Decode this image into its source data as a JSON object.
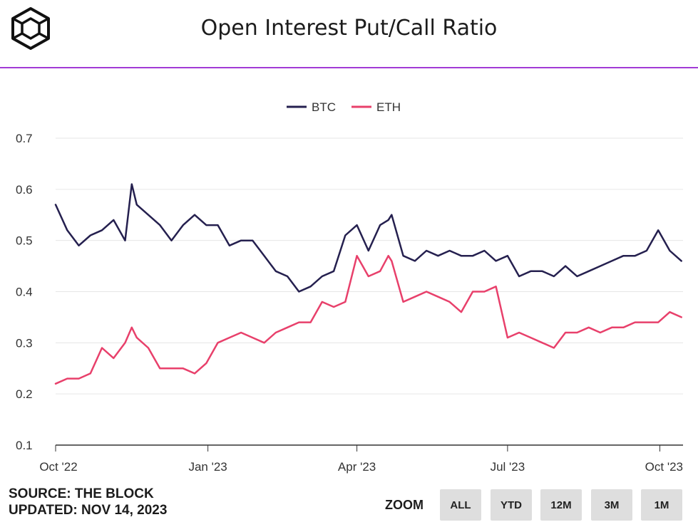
{
  "colors": {
    "accent": "#a23bd6",
    "btc": "#25204f",
    "eth": "#e8406b"
  },
  "header": {
    "logo_icon": "the-block-cube-icon",
    "title": "Open Interest Put/Call Ratio"
  },
  "footer": {
    "source": "SOURCE: THE BLOCK",
    "updated": "UPDATED: NOV 14, 2023",
    "zoom_label": "ZOOM",
    "zoom_buttons": [
      "ALL",
      "YTD",
      "12M",
      "3M",
      "1M"
    ]
  },
  "chart_data": {
    "type": "line",
    "title": "Open Interest Put/Call Ratio",
    "xlabel": "",
    "ylabel": "",
    "ylim": [
      0.1,
      0.7
    ],
    "yticks": [
      "0.1",
      "0.2",
      "0.3",
      "0.4",
      "0.5",
      "0.6",
      "0.7"
    ],
    "xlim": [
      "2022-10-01",
      "2023-10-15"
    ],
    "xticks": [
      {
        "label": "Oct '22",
        "date": "2022-10-01"
      },
      {
        "label": "Jan '23",
        "date": "2023-01-01"
      },
      {
        "label": "Apr '23",
        "date": "2023-04-01"
      },
      {
        "label": "Jul '23",
        "date": "2023-07-01"
      },
      {
        "label": "Oct '23",
        "date": "2023-10-01"
      }
    ],
    "grid": true,
    "legend": "top-center",
    "series": [
      {
        "name": "BTC",
        "x": [
          "2022-10-01",
          "2022-10-08",
          "2022-10-15",
          "2022-10-22",
          "2022-10-29",
          "2022-11-05",
          "2022-11-12",
          "2022-11-16",
          "2022-11-19",
          "2022-11-26",
          "2022-12-03",
          "2022-12-10",
          "2022-12-17",
          "2022-12-24",
          "2022-12-31",
          "2023-01-07",
          "2023-01-14",
          "2023-01-21",
          "2023-01-28",
          "2023-02-04",
          "2023-02-11",
          "2023-02-18",
          "2023-02-25",
          "2023-03-04",
          "2023-03-11",
          "2023-03-18",
          "2023-03-25",
          "2023-04-01",
          "2023-04-08",
          "2023-04-15",
          "2023-04-20",
          "2023-04-22",
          "2023-04-29",
          "2023-05-06",
          "2023-05-13",
          "2023-05-20",
          "2023-05-27",
          "2023-06-03",
          "2023-06-10",
          "2023-06-17",
          "2023-06-24",
          "2023-07-01",
          "2023-07-08",
          "2023-07-15",
          "2023-07-22",
          "2023-07-29",
          "2023-08-05",
          "2023-08-12",
          "2023-08-19",
          "2023-08-26",
          "2023-09-02",
          "2023-09-09",
          "2023-09-16",
          "2023-09-23",
          "2023-09-30",
          "2023-10-07",
          "2023-10-14"
        ],
        "values": [
          0.57,
          0.52,
          0.49,
          0.51,
          0.52,
          0.54,
          0.5,
          0.61,
          0.57,
          0.55,
          0.53,
          0.5,
          0.53,
          0.55,
          0.53,
          0.53,
          0.49,
          0.5,
          0.5,
          0.47,
          0.44,
          0.43,
          0.4,
          0.41,
          0.43,
          0.44,
          0.51,
          0.53,
          0.48,
          0.53,
          0.54,
          0.55,
          0.47,
          0.46,
          0.48,
          0.47,
          0.48,
          0.47,
          0.47,
          0.48,
          0.46,
          0.47,
          0.43,
          0.44,
          0.44,
          0.43,
          0.45,
          0.43,
          0.44,
          0.45,
          0.46,
          0.47,
          0.47,
          0.48,
          0.52,
          0.48,
          0.46
        ]
      },
      {
        "name": "ETH",
        "x": [
          "2022-10-01",
          "2022-10-08",
          "2022-10-15",
          "2022-10-22",
          "2022-10-29",
          "2022-11-05",
          "2022-11-12",
          "2022-11-16",
          "2022-11-19",
          "2022-11-26",
          "2022-12-03",
          "2022-12-10",
          "2022-12-17",
          "2022-12-24",
          "2022-12-31",
          "2023-01-07",
          "2023-01-14",
          "2023-01-21",
          "2023-01-28",
          "2023-02-04",
          "2023-02-11",
          "2023-02-18",
          "2023-02-25",
          "2023-03-04",
          "2023-03-11",
          "2023-03-18",
          "2023-03-25",
          "2023-04-01",
          "2023-04-08",
          "2023-04-15",
          "2023-04-20",
          "2023-04-22",
          "2023-04-29",
          "2023-05-06",
          "2023-05-13",
          "2023-05-20",
          "2023-05-27",
          "2023-06-03",
          "2023-06-10",
          "2023-06-17",
          "2023-06-24",
          "2023-07-01",
          "2023-07-08",
          "2023-07-15",
          "2023-07-22",
          "2023-07-29",
          "2023-08-05",
          "2023-08-12",
          "2023-08-19",
          "2023-08-26",
          "2023-09-02",
          "2023-09-09",
          "2023-09-16",
          "2023-09-23",
          "2023-09-30",
          "2023-10-07",
          "2023-10-14"
        ],
        "values": [
          0.22,
          0.23,
          0.23,
          0.24,
          0.29,
          0.27,
          0.3,
          0.33,
          0.31,
          0.29,
          0.25,
          0.25,
          0.25,
          0.24,
          0.26,
          0.3,
          0.31,
          0.32,
          0.31,
          0.3,
          0.32,
          0.33,
          0.34,
          0.34,
          0.38,
          0.37,
          0.38,
          0.47,
          0.43,
          0.44,
          0.47,
          0.46,
          0.38,
          0.39,
          0.4,
          0.39,
          0.38,
          0.36,
          0.4,
          0.4,
          0.41,
          0.31,
          0.32,
          0.31,
          0.3,
          0.29,
          0.32,
          0.32,
          0.33,
          0.32,
          0.33,
          0.33,
          0.34,
          0.34,
          0.34,
          0.36,
          0.35
        ]
      }
    ]
  }
}
